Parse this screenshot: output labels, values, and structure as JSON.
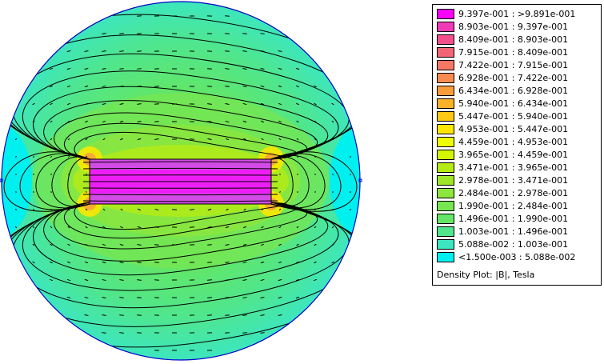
{
  "legend": {
    "title": "Density Plot: |B|, Tesla",
    "items": [
      {
        "label": "9.397e-001 : >9.891e-001",
        "color": "#ff00ff"
      },
      {
        "label": "8.903e-001 : 9.397e-001",
        "color": "#f03cb4"
      },
      {
        "label": "8.409e-001 : 8.903e-001",
        "color": "#f2508c"
      },
      {
        "label": "7.915e-001 : 8.409e-001",
        "color": "#f46478"
      },
      {
        "label": "7.422e-001 : 7.915e-001",
        "color": "#f67864"
      },
      {
        "label": "6.928e-001 : 7.422e-001",
        "color": "#f88c50"
      },
      {
        "label": "6.434e-001 : 6.928e-001",
        "color": "#fa9c3c"
      },
      {
        "label": "5.940e-001 : 6.434e-001",
        "color": "#fcb228"
      },
      {
        "label": "5.447e-001 : 5.940e-001",
        "color": "#ffc814"
      },
      {
        "label": "4.953e-001 : 5.447e-001",
        "color": "#ffe600"
      },
      {
        "label": "4.459e-001 : 4.953e-001",
        "color": "#f0ff00"
      },
      {
        "label": "3.965e-001 : 4.459e-001",
        "color": "#d2f500"
      },
      {
        "label": "3.471e-001 : 3.965e-001",
        "color": "#b4eb14"
      },
      {
        "label": "2.978e-001 : 3.471e-001",
        "color": "#a0e628"
      },
      {
        "label": "2.484e-001 : 2.978e-001",
        "color": "#8ce63c"
      },
      {
        "label": "1.990e-001 : 2.484e-001",
        "color": "#78e650"
      },
      {
        "label": "1.496e-001 : 1.990e-001",
        "color": "#64e664"
      },
      {
        "label": "1.003e-001 : 1.496e-001",
        "color": "#50e68c"
      },
      {
        "label": "5.088e-002 : 1.003e-001",
        "color": "#3ce6be"
      },
      {
        "label": "<1.500e-003 : 5.088e-002",
        "color": "#00f0f0"
      }
    ]
  },
  "plot": {
    "magnet_color": "#d24be6",
    "outer_color": "#3ce6be",
    "edge_color": "#00f0f0",
    "contour_color": "#000000",
    "boundary_color": "#0000c8"
  }
}
